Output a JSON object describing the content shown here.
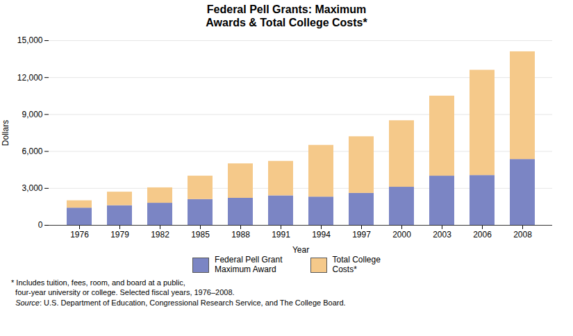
{
  "chart_data": {
    "type": "bar",
    "stacked": true,
    "title": "Federal Pell Grants: Maximum\nAwards & Total College Costs*",
    "xlabel": "Year",
    "ylabel": "Dollars",
    "categories": [
      "1976",
      "1979",
      "1982",
      "1985",
      "1988",
      "1991",
      "1994",
      "1997",
      "2000",
      "2003",
      "2006",
      "2008"
    ],
    "series": [
      {
        "name": "Federal Pell Grant\nMaximum Award",
        "color": "#7b85c4",
        "values": [
          1400,
          1600,
          1800,
          2100,
          2200,
          2400,
          2300,
          2600,
          3100,
          4000,
          4050,
          5350
        ]
      },
      {
        "name": "Total College\nCosts*",
        "color": "#f5c98a",
        "values": [
          600,
          1100,
          1250,
          1900,
          2800,
          2800,
          4200,
          4600,
          5400,
          6500,
          8550,
          8750
        ]
      }
    ],
    "ylim": [
      0,
      15000
    ],
    "yticks": [
      0,
      {
        "value": 3000,
        "label": "3,000"
      },
      {
        "value": 6000,
        "label": "6,000"
      },
      {
        "value": 9000,
        "label": "9,000"
      },
      {
        "value": 12000,
        "label": "12,000"
      },
      {
        "value": 15000,
        "label": "15,000"
      }
    ],
    "grid": true,
    "legend": "bottom",
    "annotations": [
      "* Includes tuition, fees, room, and board at a public,",
      "  four-year university or college. Selected fiscal years, 1976–2008.",
      "  Source: U.S. Department of Education, Congressional Research Service, and The College Board."
    ]
  }
}
